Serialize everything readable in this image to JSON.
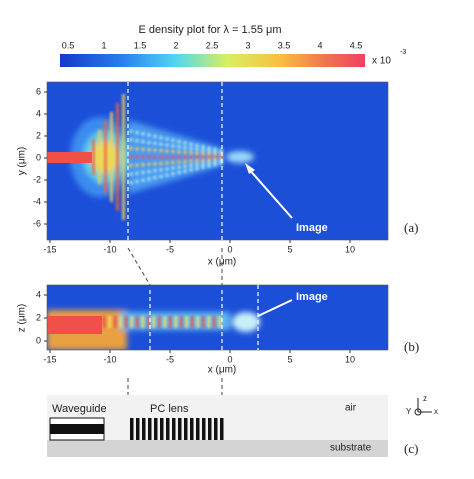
{
  "colorbar": {
    "title": "E density plot for λ = 1.55 μm",
    "ticks": [
      "0.5",
      "1",
      "1.5",
      "2",
      "2.5",
      "3",
      "3.5",
      "4",
      "4.5"
    ],
    "multiplier": "x 10",
    "exponent": "-3"
  },
  "panel_a": {
    "y_label": "y (μm)",
    "x_label": "x (μm)",
    "x_ticks": [
      "-15",
      "-10",
      "-5",
      "0",
      "5",
      "10"
    ],
    "y_ticks": [
      "6",
      "4",
      "2",
      "0",
      "-2",
      "-4",
      "-6"
    ],
    "annotation": "Image",
    "tag": "(a)"
  },
  "panel_b": {
    "y_label": "z (μm)",
    "x_label": "x (μm)",
    "x_ticks": [
      "-15",
      "-10",
      "-5",
      "0",
      "5",
      "10"
    ],
    "y_ticks": [
      "4",
      "2",
      "0"
    ],
    "annotation": "Image",
    "tag": "(b)"
  },
  "panel_c": {
    "waveguide": "Waveguide",
    "pc_lens": "PC lens",
    "air": "air",
    "substrate": "substrate",
    "axis_z": "z",
    "axis_x": "x",
    "axis_y": "Y",
    "tag": "(c)"
  }
}
